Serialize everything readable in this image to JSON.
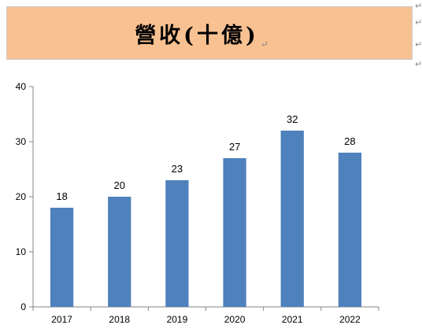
{
  "title": {
    "text": "營收(十億)",
    "return_mark": "↵",
    "background": "#f8c191"
  },
  "paragraph_marks": [
    "↵",
    "↵",
    "↵",
    "↵"
  ],
  "chart_data": {
    "type": "bar",
    "categories": [
      "2017",
      "2018",
      "2019",
      "2020",
      "2021",
      "2022"
    ],
    "values": [
      18,
      20,
      23,
      27,
      32,
      28
    ],
    "value_labels": [
      "18",
      "20",
      "23",
      "27",
      "32",
      "28"
    ],
    "ylim": [
      0,
      40
    ],
    "yticks": [
      0,
      10,
      20,
      30,
      40
    ],
    "xlabel": "",
    "ylabel": "",
    "grid": false,
    "legend": "none",
    "bar_color": "#4f81bd",
    "axis_color": "#868686"
  }
}
